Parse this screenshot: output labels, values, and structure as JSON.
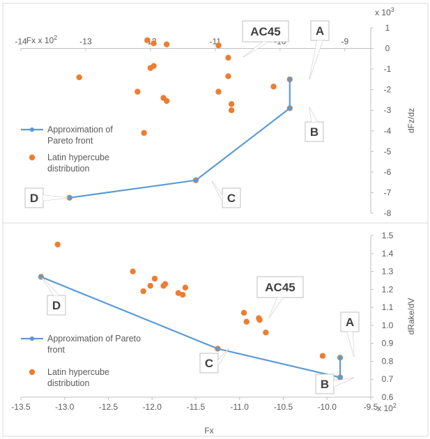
{
  "chart_data": [
    {
      "type": "scatter",
      "xlim": [
        -14,
        -8.6
      ],
      "ylim": [
        -8,
        1
      ],
      "x_ticks": [
        -14,
        -13,
        -12,
        -11,
        -10,
        -9
      ],
      "x_tick_labels": [
        "-14",
        "-13",
        "-12",
        "-11",
        "-10",
        "-9"
      ],
      "y_ticks": [
        -8,
        -7,
        -6,
        -5,
        -4,
        -3,
        -2,
        -1,
        0,
        1
      ],
      "y_tick_labels": [
        "-8",
        "-7",
        "-6",
        "-5",
        "-4",
        "-3",
        "-2",
        "-1",
        "0",
        "1"
      ],
      "x_scale_label": "Fx  x 10²",
      "y_scale_label": "x 10³",
      "ylabel": "dFz/dz",
      "grid": false,
      "legend_position": "left",
      "colors": {
        "pareto": "#5b9bd5",
        "lhs": "#ed7d31"
      },
      "series": [
        {
          "name": "Approximation of Pareto front",
          "legend_lines": [
            "Approximation of",
            "Pareto front"
          ],
          "type": "line",
          "points": [
            [
              -13.25,
              -7.25
            ],
            [
              -11.3,
              -6.4
            ],
            [
              -9.85,
              -2.9
            ],
            [
              -9.85,
              -1.5
            ]
          ]
        },
        {
          "name": "Latin hypercube distribution",
          "legend_lines": [
            "Latin hypercube",
            "distribution"
          ],
          "type": "scatter",
          "points": [
            [
              -13.1,
              -1.4
            ],
            [
              -12.2,
              -2.1
            ],
            [
              -12.1,
              -4.1
            ],
            [
              -12.05,
              0.4
            ],
            [
              -12.0,
              -0.95
            ],
            [
              -11.95,
              0.25
            ],
            [
              -11.95,
              -0.85
            ],
            [
              -11.8,
              -2.4
            ],
            [
              -11.75,
              -2.55
            ],
            [
              -11.75,
              0.2
            ],
            [
              -10.95,
              0.15
            ],
            [
              -10.95,
              -2.1
            ],
            [
              -10.8,
              -0.45
            ],
            [
              -10.8,
              -1.35
            ],
            [
              -10.75,
              -2.7
            ],
            [
              -10.75,
              -3.0
            ],
            [
              -10.1,
              -1.85
            ],
            [
              -9.85,
              -1.5
            ],
            [
              -9.85,
              -2.9
            ],
            [
              -11.3,
              -6.4
            ],
            [
              -13.25,
              -7.25
            ]
          ]
        }
      ],
      "annotations": [
        {
          "text": "A",
          "point": [
            -9.85,
            -1.5
          ]
        },
        {
          "text": "B",
          "point": [
            -9.85,
            -2.9
          ]
        },
        {
          "text": "C",
          "point": [
            -11.3,
            -6.4
          ]
        },
        {
          "text": "D",
          "point": [
            -13.25,
            -7.25
          ]
        },
        {
          "text": "AC45",
          "point": [
            -10.8,
            -0.45
          ]
        }
      ]
    },
    {
      "type": "scatter",
      "xlim": [
        -13.5,
        -9.5
      ],
      "ylim": [
        0.6,
        1.5
      ],
      "x_ticks": [
        -13.5,
        -13.0,
        -12.5,
        -12.0,
        -11.5,
        -11.0,
        -10.5,
        -10.0,
        -9.5
      ],
      "x_tick_labels": [
        "-13.5",
        "-13.0",
        "-12.5",
        "-12.0",
        "-11.5",
        "-11.0",
        "-10.5",
        "-10.0",
        "-9.5"
      ],
      "y_ticks": [
        0.6,
        0.7,
        0.8,
        0.9,
        1.0,
        1.1,
        1.2,
        1.3,
        1.4,
        1.5
      ],
      "y_tick_labels": [
        "0.6",
        "0.7",
        "0.8",
        "0.9",
        "1.0",
        "1.1",
        "1.2",
        "1.3",
        "1.4",
        "1.5"
      ],
      "x_scale_label": "x 10²",
      "xlabel": "Fx",
      "ylabel": "dRake/dV",
      "grid": false,
      "legend_position": "bottom-left",
      "colors": {
        "pareto": "#5b9bd5",
        "lhs": "#ed7d31"
      },
      "series": [
        {
          "name": "Approximation of Pareto front",
          "legend_lines": [
            "Approximation of Pareto",
            "front"
          ],
          "type": "line",
          "points": [
            [
              -13.27,
              1.27
            ],
            [
              -11.25,
              0.87
            ],
            [
              -9.85,
              0.71
            ],
            [
              -9.85,
              0.82
            ]
          ]
        },
        {
          "name": "Latin hypercube distribution",
          "legend_lines": [
            "Latin hypercube",
            "distribution"
          ],
          "type": "scatter",
          "points": [
            [
              -13.27,
              1.27
            ],
            [
              -13.08,
              1.45
            ],
            [
              -12.22,
              1.3
            ],
            [
              -12.1,
              1.19
            ],
            [
              -12.02,
              1.22
            ],
            [
              -11.97,
              1.26
            ],
            [
              -11.87,
              1.22
            ],
            [
              -11.85,
              1.23
            ],
            [
              -11.7,
              1.18
            ],
            [
              -11.65,
              1.17
            ],
            [
              -11.62,
              1.21
            ],
            [
              -11.25,
              0.87
            ],
            [
              -10.95,
              1.07
            ],
            [
              -10.92,
              1.02
            ],
            [
              -10.78,
              1.04
            ],
            [
              -10.77,
              1.03
            ],
            [
              -10.7,
              0.96
            ],
            [
              -10.05,
              0.83
            ],
            [
              -9.85,
              0.82
            ],
            [
              -9.85,
              0.71
            ]
          ]
        }
      ],
      "annotations": [
        {
          "text": "A",
          "point": [
            -9.85,
            0.82
          ]
        },
        {
          "text": "B",
          "point": [
            -9.85,
            0.71
          ]
        },
        {
          "text": "C",
          "point": [
            -11.25,
            0.87
          ]
        },
        {
          "text": "D",
          "point": [
            -13.27,
            1.27
          ]
        },
        {
          "text": "AC45",
          "point": [
            -10.78,
            1.04
          ]
        }
      ]
    }
  ]
}
